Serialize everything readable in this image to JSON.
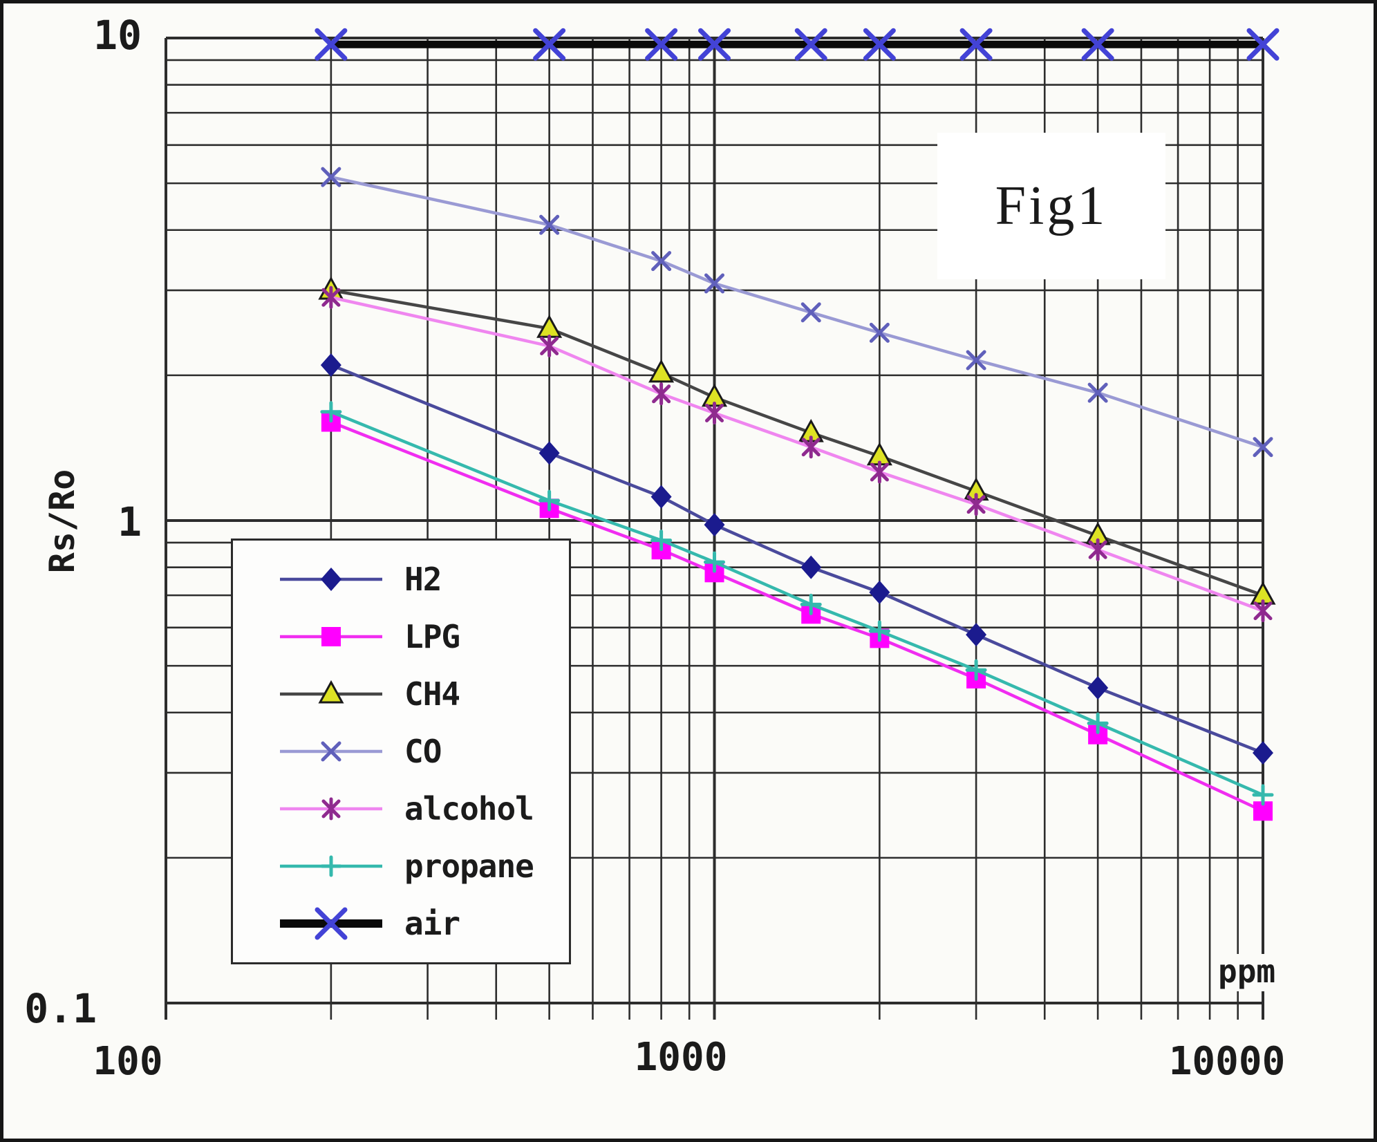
{
  "figure": {
    "title": "Fig1",
    "y_axis": {
      "label": "Rs/Ro",
      "scale": "log",
      "tick_labels": [
        "10",
        "1",
        "0.1"
      ]
    },
    "x_axis": {
      "unit_label": "ppm",
      "scale": "log",
      "tick_labels": [
        "100",
        "1000",
        "10000"
      ]
    }
  },
  "chart_data": {
    "type": "line",
    "title": "Fig1",
    "xlabel": "ppm",
    "ylabel": "Rs/Ro",
    "x_scale": "log",
    "y_scale": "log",
    "xlim": [
      100,
      10000
    ],
    "ylim": [
      0.1,
      10
    ],
    "grid": true,
    "legend_position": "lower-left",
    "x": [
      200,
      500,
      800,
      1000,
      1500,
      2000,
      3000,
      5000,
      10000
    ],
    "series": [
      {
        "name": "H2",
        "marker": "diamond",
        "line_color": "#4a4a9c",
        "marker_color": "#1b1b8e",
        "values": [
          2.1,
          1.38,
          1.12,
          0.98,
          0.8,
          0.71,
          0.58,
          0.45,
          0.33
        ]
      },
      {
        "name": "LPG",
        "marker": "square",
        "line_color": "#f02df0",
        "marker_color": "#ff00ff",
        "values": [
          1.6,
          1.06,
          0.87,
          0.78,
          0.64,
          0.57,
          0.47,
          0.36,
          0.25
        ]
      },
      {
        "name": "CH4",
        "marker": "triangle",
        "line_color": "#464646",
        "marker_color": "#dde224",
        "marker_stroke": "#1a1a1a",
        "values": [
          3.0,
          2.5,
          2.02,
          1.8,
          1.52,
          1.36,
          1.15,
          0.93,
          0.7
        ]
      },
      {
        "name": "CO",
        "marker": "cross",
        "line_color": "#9a9ad4",
        "marker_color": "#6060bb",
        "values": [
          5.15,
          4.1,
          3.45,
          3.1,
          2.7,
          2.45,
          2.15,
          1.84,
          1.42
        ]
      },
      {
        "name": "alcohol",
        "marker": "star",
        "line_color": "#ef86ef",
        "marker_color": "#8f2a8f",
        "values": [
          2.9,
          2.3,
          1.83,
          1.67,
          1.42,
          1.26,
          1.08,
          0.87,
          0.65
        ]
      },
      {
        "name": "propane",
        "marker": "plus",
        "line_color": "#35b9ad",
        "marker_color": "#35b9ad",
        "values": [
          1.68,
          1.1,
          0.91,
          0.82,
          0.67,
          0.59,
          0.49,
          0.38,
          0.27
        ]
      },
      {
        "name": "air",
        "marker": "x-large",
        "line_color": "#0a0a0a",
        "marker_color": "#4343d6",
        "line_width": 11,
        "values": [
          9.7,
          9.7,
          9.7,
          9.7,
          9.7,
          9.7,
          9.7,
          9.7,
          9.7
        ]
      }
    ]
  },
  "colors": {
    "grid": "#2d2d2d",
    "background": "#fbfbf8",
    "frame": "#161616",
    "legend_border": "#2b2b2b"
  }
}
